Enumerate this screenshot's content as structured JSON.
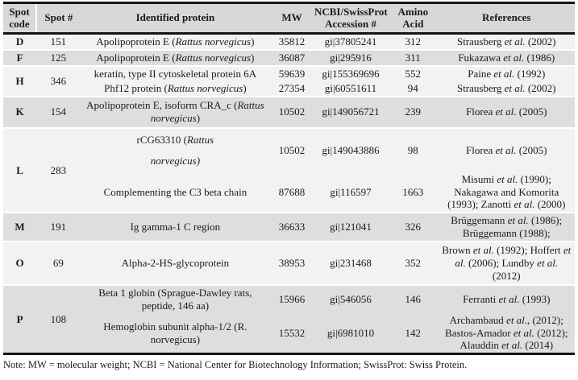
{
  "page": {
    "note": "Note: MW = molecular weight; NCBI = National Center for Biotechnology Information; SwissProt: Swiss Protein."
  },
  "colors": {
    "header_bg": "#d8d8d8",
    "row_light": "#f2f2f2",
    "row_dark": "#dedede",
    "rule_black": "#141414",
    "text": "#1b1b1b"
  },
  "table": {
    "headers": [
      "Spot code",
      "Spot #",
      "Identified protein",
      "MW",
      "NCBI/SwissProt Accession #",
      "Amino Acid",
      "References"
    ],
    "groups": [
      {
        "code": "D",
        "spot": "151",
        "rows": [
          {
            "protein": [
              {
                "t": "Apolipoprotein E ("
              },
              {
                "t": "Rattus norvegicus",
                "i": true
              },
              {
                "t": ")"
              }
            ],
            "mw": "35812",
            "accession": "gi|37805241",
            "amino_acid": "312",
            "references": [
              {
                "t": "Strausberg "
              },
              {
                "t": "et al.",
                "i": true
              },
              {
                "t": " (2002)"
              }
            ]
          }
        ]
      },
      {
        "code": "F",
        "spot": "125",
        "rows": [
          {
            "protein": [
              {
                "t": "Apolipoprotein E ("
              },
              {
                "t": "Rattus norvegicus",
                "i": true
              },
              {
                "t": ")"
              }
            ],
            "mw": "36087",
            "accession": "gi|295916",
            "amino_acid": "311",
            "references": [
              {
                "t": "Fukazawa "
              },
              {
                "t": "et al.",
                "i": true
              },
              {
                "t": " (1986)"
              }
            ]
          }
        ]
      },
      {
        "code": "H",
        "spot": "346",
        "rows": [
          {
            "protein": [
              {
                "t": "keratin, type II cytoskeletal protein 6A"
              }
            ],
            "mw": "59639",
            "accession": "gi|155369696",
            "amino_acid": "552",
            "references": [
              {
                "t": "Paine "
              },
              {
                "t": "et al.",
                "i": true
              },
              {
                "t": " (1992)"
              }
            ]
          },
          {
            "protein": [
              {
                "t": "Phf12 protein ("
              },
              {
                "t": "Rattus norvegicus",
                "i": true
              },
              {
                "t": ")"
              }
            ],
            "mw": "27354",
            "accession": "gi|60551611",
            "amino_acid": "94",
            "references": [
              {
                "t": "Strausberg "
              },
              {
                "t": "et al.",
                "i": true
              },
              {
                "t": " (2002)"
              }
            ]
          }
        ]
      },
      {
        "code": "K",
        "spot": "154",
        "rows": [
          {
            "protein": [
              {
                "t": "Apolipoprotein E, isoform CRA_c ("
              },
              {
                "t": "Rattus norvegicus",
                "i": true
              },
              {
                "t": ")"
              }
            ],
            "mw": "10502",
            "accession": "gi|149056721",
            "amino_acid": "239",
            "references": [
              {
                "t": "Florea "
              },
              {
                "t": "et al.",
                "i": true
              },
              {
                "t": " (2005)"
              }
            ]
          }
        ]
      },
      {
        "code": "L",
        "spot": "283",
        "rows": [
          {
            "protein": [
              {
                "t": "rCG63310 ("
              },
              {
                "t": "Rattus",
                "i": true
              },
              {
                "br": true
              },
              {
                "t": "norvegicus)",
                "i": true
              }
            ],
            "mw": "10502",
            "accession": "gi|149043886",
            "amino_acid": "98",
            "references": [
              {
                "t": "Florea "
              },
              {
                "t": "et al.",
                "i": true
              },
              {
                "t": " (2005)"
              }
            ]
          },
          {
            "protein": [
              {
                "t": "Complementing the C3 beta chain"
              }
            ],
            "mw": "87688",
            "accession": "gi|116597",
            "amino_acid": "1663",
            "references": [
              {
                "t": "Misumi "
              },
              {
                "t": "et al.",
                "i": true
              },
              {
                "t": " (1990); Nakagawa and Komorita (1993); Zanotti "
              },
              {
                "t": "et al.",
                "i": true
              },
              {
                "t": " (2000)"
              }
            ]
          }
        ]
      },
      {
        "code": "M",
        "spot": "191",
        "rows": [
          {
            "protein": [
              {
                "t": "Ig gamma-1 C region"
              }
            ],
            "mw": "36633",
            "accession": "gi|121041",
            "amino_acid": "326",
            "references": [
              {
                "t": "Brüggemann "
              },
              {
                "t": "et al.",
                "i": true
              },
              {
                "t": " (1986); Brüggemann (1988);"
              }
            ]
          }
        ]
      },
      {
        "code": "O",
        "spot": "69",
        "rows": [
          {
            "protein": [
              {
                "t": "Alpha-2-HS-glycoprotein"
              }
            ],
            "mw": "38953",
            "accession": "gi|231468",
            "amino_acid": "352",
            "references": [
              {
                "t": "Brown "
              },
              {
                "t": "et al.",
                "i": true
              },
              {
                "t": " (1992); Hoffert "
              },
              {
                "t": "et al.",
                "i": true
              },
              {
                "t": " (2006); Lundby "
              },
              {
                "t": "et al.",
                "i": true
              },
              {
                "t": " (2012)"
              }
            ]
          }
        ]
      },
      {
        "code": "P",
        "spot": "108",
        "rows": [
          {
            "protein": [
              {
                "t": "Beta 1 globin (Sprague-Dawley rats, peptide, 146 aa)"
              }
            ],
            "mw": "15966",
            "accession": "gi|546056",
            "amino_acid": "146",
            "references": [
              {
                "t": "Ferranti "
              },
              {
                "t": "et al.",
                "i": true
              },
              {
                "t": " (1993)"
              }
            ]
          },
          {
            "protein": [
              {
                "t": "Hemoglobin subunit alpha-1/2 (R. norvegicus)"
              }
            ],
            "mw": "15532",
            "accession": "gi|6981010",
            "amino_acid": "142",
            "references": [
              {
                "t": "Archambaud "
              },
              {
                "t": "et al.",
                "i": true
              },
              {
                "t": ", (2012); Bastos-Amador "
              },
              {
                "t": "et al.",
                "i": true
              },
              {
                "t": " (2012); Alauddin "
              },
              {
                "t": "et al.",
                "i": true
              },
              {
                "t": " (2014)"
              }
            ]
          }
        ]
      }
    ]
  }
}
